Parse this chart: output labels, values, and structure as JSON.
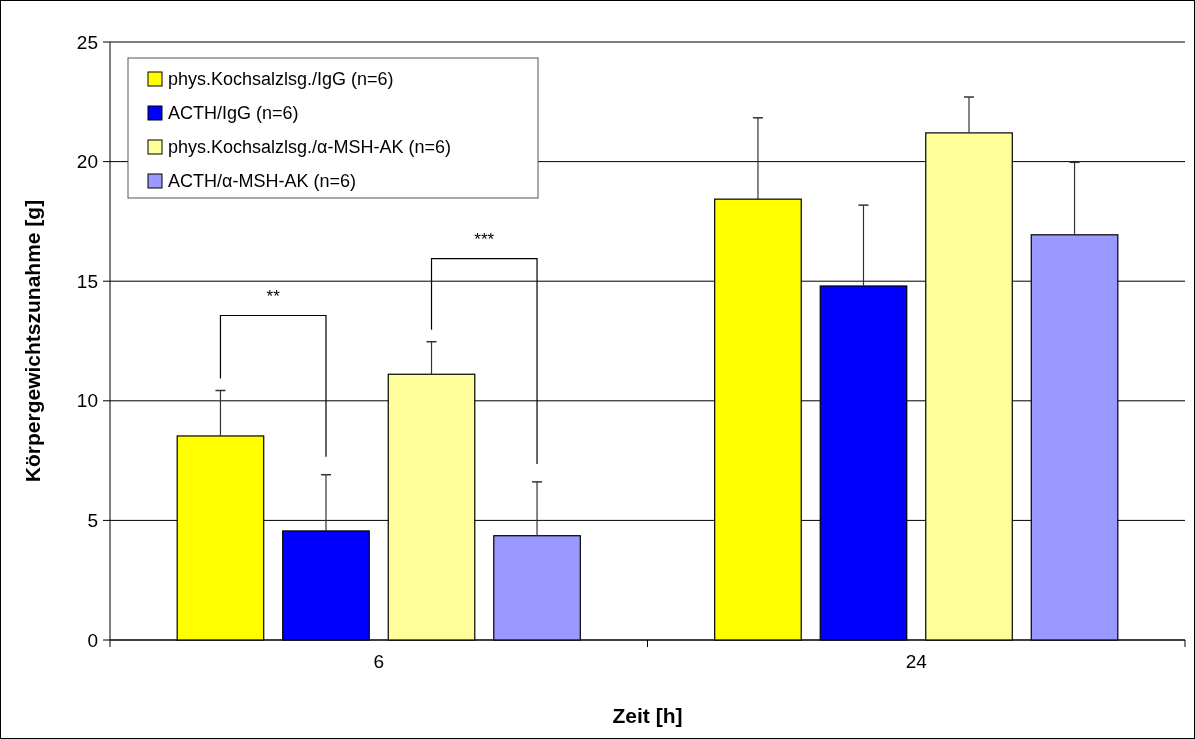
{
  "chart_data": {
    "type": "bar",
    "xlabel": "Zeit [h]",
    "ylabel": "Körpergewichtszunahme [g]",
    "categories": [
      "6",
      "24"
    ],
    "series": [
      {
        "name": "phys.Kochsalzlsg./IgG (n=6)",
        "color": "#ffff00",
        "values": [
          8.53,
          18.43
        ],
        "errors": [
          1.9,
          3.4
        ]
      },
      {
        "name": "ACTH/IgG (n=6)",
        "color": "#0000ff",
        "values": [
          4.56,
          14.8
        ],
        "errors": [
          2.35,
          3.38
        ]
      },
      {
        "name": "phys.Kochsalzlsg./α-MSH-AK (n=6)",
        "color": "#ffff99",
        "values": [
          11.11,
          21.2
        ],
        "errors": [
          1.36,
          1.5
        ]
      },
      {
        "name": "ACTH/α-MSH-AK (n=6)",
        "color": "#9999ff",
        "values": [
          4.36,
          16.94
        ],
        "errors": [
          2.25,
          3.03
        ]
      }
    ],
    "ylim": [
      0,
      25
    ],
    "yticks": [
      0,
      5,
      10,
      15,
      20,
      25
    ],
    "grid": "y",
    "legend": "top left",
    "annotations": [
      "**",
      "***"
    ]
  }
}
